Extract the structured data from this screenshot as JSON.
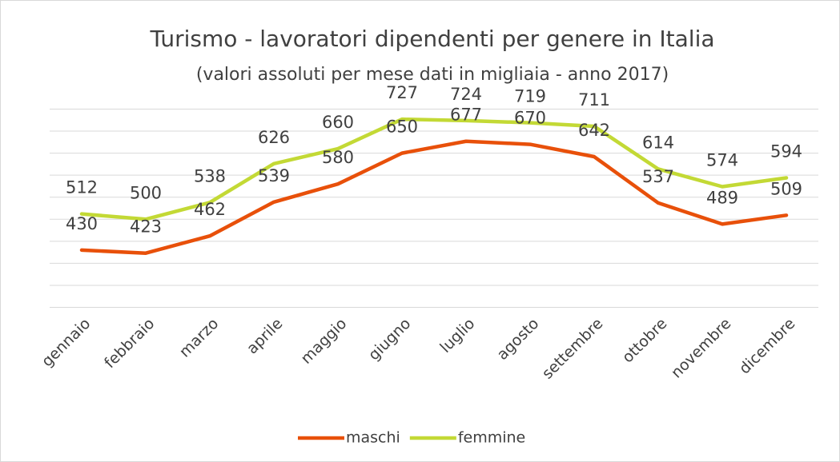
{
  "chart_data": {
    "type": "line",
    "title": "Turismo - lavoratori dipendenti per genere in Italia",
    "subtitle": "(valori assoluti per mese dati in migliaia - anno 2017)",
    "categories": [
      "gennaio",
      "febbraio",
      "marzo",
      "aprile",
      "maggio",
      "giugno",
      "luglio",
      "agosto",
      "settembre",
      "ottobre",
      "novembre",
      "dicembre"
    ],
    "series": [
      {
        "name": "maschi",
        "color": "#e8500a",
        "values": [
          430,
          423,
          462,
          539,
          580,
          650,
          677,
          670,
          642,
          537,
          489,
          509
        ]
      },
      {
        "name": "femmine",
        "color": "#c3d935",
        "values": [
          512,
          500,
          538,
          626,
          660,
          727,
          724,
          719,
          711,
          614,
          574,
          594
        ]
      }
    ],
    "ylim": [
      300,
      750
    ],
    "yticks": [
      300,
      350,
      400,
      450,
      500,
      550,
      600,
      650,
      700,
      750
    ],
    "grid": true,
    "legend": "bottom"
  }
}
